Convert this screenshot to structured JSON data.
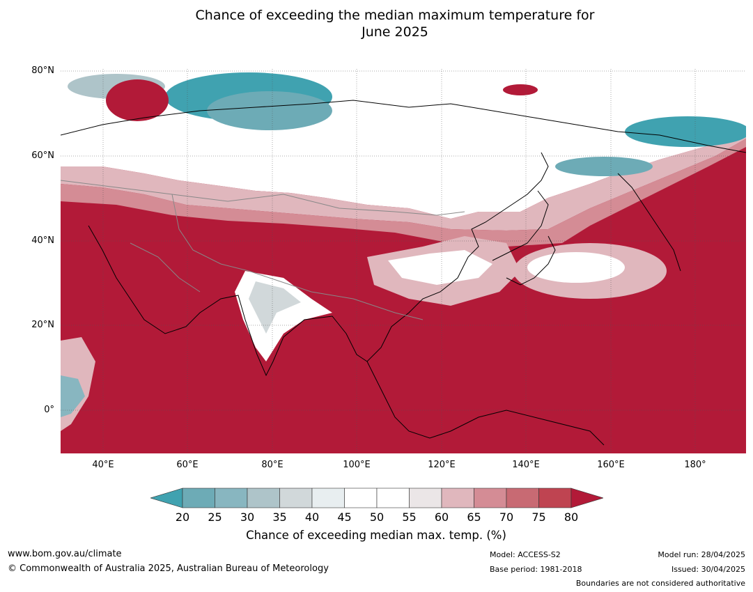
{
  "title": {
    "line1": "Chance of exceeding the median maximum temperature for",
    "line2": "June 2025"
  },
  "map": {
    "lat_labels": [
      "80°N",
      "60°N",
      "40°N",
      "20°N",
      "0°"
    ],
    "lon_labels": [
      "40°E",
      "60°E",
      "80°E",
      "100°E",
      "120°E",
      "140°E",
      "160°E",
      "180°"
    ],
    "lon_range": [
      30,
      192
    ],
    "lat_range": [
      -10,
      80
    ]
  },
  "colorbar": {
    "ticks": [
      "20",
      "25",
      "30",
      "35",
      "40",
      "45",
      "50",
      "55",
      "60",
      "65",
      "70",
      "75",
      "80"
    ],
    "colors": [
      "#40a2b0",
      "#6dabb6",
      "#88b6c0",
      "#aec4c9",
      "#d1d8da",
      "#e8eef0",
      "#ffffff",
      "#ffffff",
      "#ebe6e7",
      "#e0b7bd",
      "#d48c95",
      "#c86a73",
      "#bf4451",
      "#b21a38"
    ],
    "label": "Chance of exceeding median max. temp. (%)"
  },
  "footer": {
    "url": "www.bom.gov.au/climate",
    "copyright": "© Commonwealth of Australia 2025, Australian Bureau of Meteorology",
    "model": "Model: ACCESS-S2",
    "base_period": "Base period: 1981-2018",
    "model_run": "Model run: 28/04/2025",
    "issued": "Issued: 30/04/2025",
    "boundaries": "Boundaries are not considered authoritative"
  }
}
